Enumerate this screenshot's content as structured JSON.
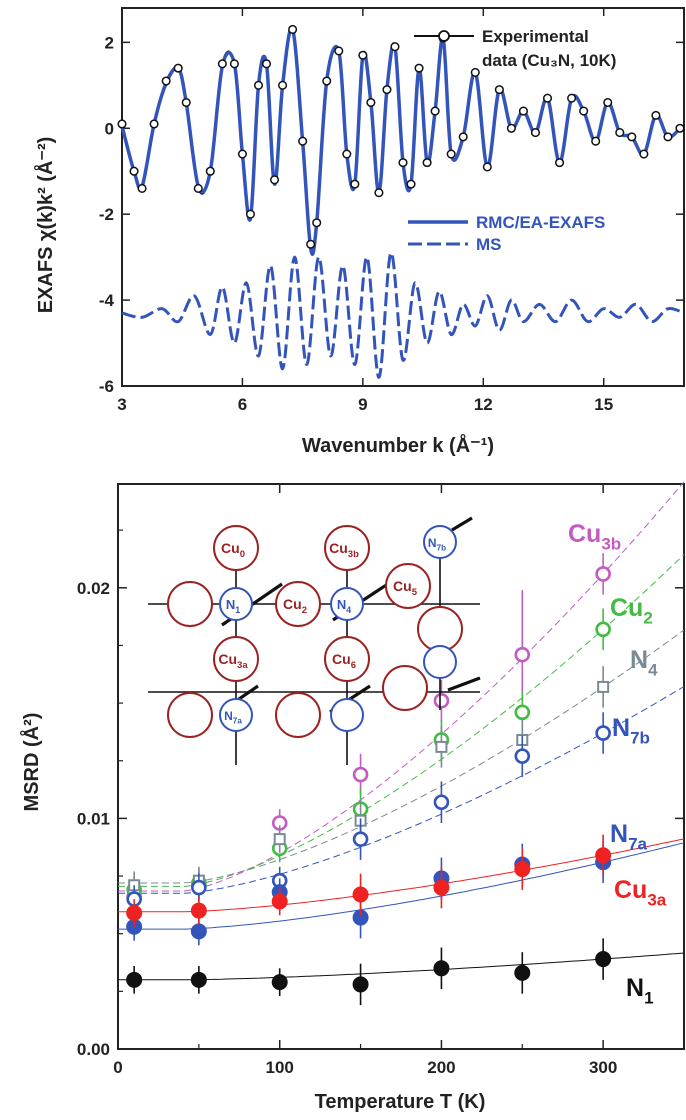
{
  "chart_data": [
    {
      "type": "line",
      "xlabel": "Wavenumber k (Å⁻¹)",
      "ylabel": "EXAFS χ(k)k² (Å⁻²)",
      "xlim": [
        3,
        17
      ],
      "ylim": [
        -6,
        2.8
      ],
      "xticks": [
        3,
        6,
        9,
        12,
        15
      ],
      "yticks": [
        -6,
        -4,
        -2,
        0,
        2
      ],
      "legend": {
        "experimental": "Experimental",
        "experimental_line2": "data (Cu₃N, 10K)",
        "rmc": "RMC/EA-EXAFS",
        "ms": "MS",
        "placement": "top-right and mid-right"
      },
      "colors": {
        "experimental": "#111111",
        "fit": "#3355bb"
      },
      "series": [
        {
          "name": "data (Cu₃N, 10K)",
          "x": [
            3.0,
            3.3,
            3.5,
            3.8,
            4.1,
            4.4,
            4.6,
            4.9,
            5.2,
            5.5,
            5.8,
            6.0,
            6.2,
            6.4,
            6.6,
            6.8,
            7.0,
            7.25,
            7.5,
            7.7,
            7.85,
            8.1,
            8.4,
            8.6,
            8.8,
            9.0,
            9.2,
            9.4,
            9.6,
            9.8,
            10.0,
            10.2,
            10.4,
            10.6,
            10.8,
            11.0,
            11.2,
            11.5,
            11.8,
            12.1,
            12.4,
            12.7,
            13.0,
            13.3,
            13.6,
            13.9,
            14.2,
            14.5,
            14.8,
            15.1,
            15.4,
            15.7,
            16.0,
            16.3,
            16.6,
            16.9
          ],
          "values": [
            0.1,
            -1.0,
            -1.4,
            0.1,
            1.1,
            1.4,
            0.6,
            -1.4,
            -1.0,
            1.5,
            1.5,
            -0.6,
            -2.0,
            1.0,
            1.5,
            -1.2,
            1.0,
            2.3,
            -0.3,
            -2.7,
            -2.2,
            1.1,
            1.8,
            -0.6,
            -1.3,
            1.7,
            0.6,
            -1.5,
            0.9,
            1.9,
            -0.8,
            -1.3,
            1.4,
            -0.8,
            0.4,
            2.1,
            -0.6,
            -0.2,
            1.3,
            -0.9,
            0.9,
            0.0,
            0.4,
            -0.1,
            0.7,
            -0.8,
            0.7,
            0.4,
            -0.3,
            0.6,
            -0.1,
            -0.2,
            -0.6,
            0.3,
            -0.2,
            0.0
          ]
        },
        {
          "name": "RMC/EA-EXAFS",
          "x": [
            3.0,
            3.3,
            3.5,
            3.8,
            4.1,
            4.4,
            4.6,
            4.9,
            5.2,
            5.5,
            5.8,
            6.0,
            6.2,
            6.4,
            6.6,
            6.8,
            7.0,
            7.25,
            7.5,
            7.7,
            7.85,
            8.1,
            8.4,
            8.6,
            8.8,
            9.0,
            9.2,
            9.4,
            9.6,
            9.8,
            10.0,
            10.2,
            10.4,
            10.6,
            10.8,
            11.0,
            11.2,
            11.5,
            11.8,
            12.1,
            12.4,
            12.7,
            13.0,
            13.3,
            13.6,
            13.9,
            14.2,
            14.5,
            14.8,
            15.1,
            15.4,
            15.7,
            16.0,
            16.3,
            16.6,
            16.9
          ],
          "values": [
            0.05,
            -1.0,
            -1.35,
            0.1,
            1.05,
            1.4,
            0.6,
            -1.35,
            -1.0,
            1.45,
            1.5,
            -0.6,
            -2.1,
            1.0,
            1.5,
            -1.3,
            1.0,
            2.3,
            -0.3,
            -2.8,
            -2.2,
            1.1,
            1.8,
            -0.6,
            -1.3,
            1.7,
            0.6,
            -1.5,
            0.9,
            1.9,
            -0.8,
            -1.3,
            1.4,
            -0.8,
            0.4,
            2.1,
            -0.6,
            -0.2,
            1.3,
            -0.9,
            0.9,
            0.0,
            0.4,
            -0.1,
            0.7,
            -0.8,
            0.7,
            0.4,
            -0.3,
            0.6,
            -0.1,
            -0.2,
            -0.6,
            0.3,
            -0.2,
            0.0
          ]
        },
        {
          "name": "MS",
          "x": [
            3.0,
            3.5,
            4.0,
            4.4,
            4.8,
            5.2,
            5.5,
            5.8,
            6.1,
            6.4,
            6.7,
            7.0,
            7.3,
            7.6,
            7.9,
            8.2,
            8.5,
            8.8,
            9.1,
            9.4,
            9.7,
            10.0,
            10.3,
            10.6,
            10.9,
            11.2,
            11.5,
            11.8,
            12.1,
            12.4,
            12.7,
            13.0,
            13.4,
            13.8,
            14.2,
            14.6,
            15.0,
            15.4,
            15.8,
            16.2,
            16.6,
            17.0
          ],
          "values": [
            -4.3,
            -4.4,
            -4.2,
            -4.5,
            -3.9,
            -4.8,
            -3.7,
            -5.0,
            -3.6,
            -5.3,
            -3.2,
            -5.6,
            -3.0,
            -5.5,
            -3.0,
            -5.3,
            -3.2,
            -5.5,
            -3.0,
            -5.8,
            -2.9,
            -5.4,
            -3.6,
            -5.0,
            -3.8,
            -4.8,
            -4.1,
            -4.6,
            -3.9,
            -4.7,
            -4.0,
            -4.5,
            -4.1,
            -4.5,
            -4.0,
            -4.5,
            -4.2,
            -4.4,
            -4.1,
            -4.5,
            -4.2,
            -4.3
          ]
        }
      ]
    },
    {
      "type": "scatter",
      "xlabel": "Temperature T (K)",
      "ylabel": "MSRD (Å²)",
      "xlim": [
        0,
        350
      ],
      "ylim": [
        0,
        0.0245
      ],
      "xticks": [
        0,
        100,
        200,
        300
      ],
      "yticks": [
        0.0,
        0.01,
        0.02
      ],
      "ytick_labels": [
        "0.00",
        "0.01",
        "0.02"
      ],
      "x": [
        10,
        50,
        100,
        150,
        200,
        250,
        300
      ],
      "series": [
        {
          "name": "Cu3b",
          "color": "#c25cc2",
          "marker": "open-circle",
          "values": [
            0.0066,
            0.0071,
            0.0098,
            0.0119,
            0.0151,
            0.0171,
            0.0206
          ]
        },
        {
          "name": "Cu2",
          "color": "#44bb44",
          "marker": "open-circle",
          "values": [
            0.0069,
            0.0072,
            0.0087,
            0.0104,
            0.0134,
            0.0146,
            0.0182
          ]
        },
        {
          "name": "N4",
          "color": "#7a8a94",
          "marker": "open-square",
          "values": [
            0.0071,
            0.0073,
            0.0091,
            0.0099,
            0.0131,
            0.0134,
            0.0157
          ]
        },
        {
          "name": "N7b",
          "color": "#3355bb",
          "marker": "open-circle",
          "values": [
            0.0065,
            0.007,
            0.0073,
            0.0091,
            0.0107,
            0.0127,
            0.0137
          ]
        },
        {
          "name": "N7a",
          "color": "#3355bb",
          "marker": "filled-circle",
          "values": [
            0.0053,
            0.0051,
            0.0068,
            0.0057,
            0.0074,
            0.008,
            0.0081
          ]
        },
        {
          "name": "Cu3a",
          "color": "#ee2222",
          "marker": "filled-circle",
          "values": [
            0.0059,
            0.006,
            0.0064,
            0.0067,
            0.007,
            0.0078,
            0.0084
          ]
        },
        {
          "name": "N1",
          "color": "#111111",
          "marker": "filled-circle",
          "values": [
            0.003,
            0.003,
            0.0029,
            0.0028,
            0.0035,
            0.0033,
            0.0039
          ]
        }
      ],
      "labels": {
        "Cu3b": {
          "main": "Cu",
          "sub": "3b"
        },
        "Cu2": {
          "main": "Cu",
          "sub": "2"
        },
        "N4": {
          "main": "N",
          "sub": "4"
        },
        "N7b": {
          "main": "N",
          "sub": "7b"
        },
        "N7a": {
          "main": "N",
          "sub": "7a"
        },
        "Cu3a": {
          "main": "Cu",
          "sub": "3a"
        },
        "N1": {
          "main": "N",
          "sub": "1"
        }
      },
      "inset_atoms": {
        "Cu0": {
          "main": "Cu",
          "sub": "0"
        },
        "Cu3b": {
          "main": "Cu",
          "sub": "3b"
        },
        "N7b": {
          "main": "N",
          "sub": "7b"
        },
        "Cu5": {
          "main": "Cu",
          "sub": "5"
        },
        "N1": {
          "main": "N",
          "sub": "1"
        },
        "Cu2": {
          "main": "Cu",
          "sub": "2"
        },
        "N4": {
          "main": "N",
          "sub": "4"
        },
        "Cu3a": {
          "main": "Cu",
          "sub": "3a"
        },
        "Cu6": {
          "main": "Cu",
          "sub": "6"
        },
        "N7a": {
          "main": "N",
          "sub": "7a"
        }
      }
    }
  ]
}
